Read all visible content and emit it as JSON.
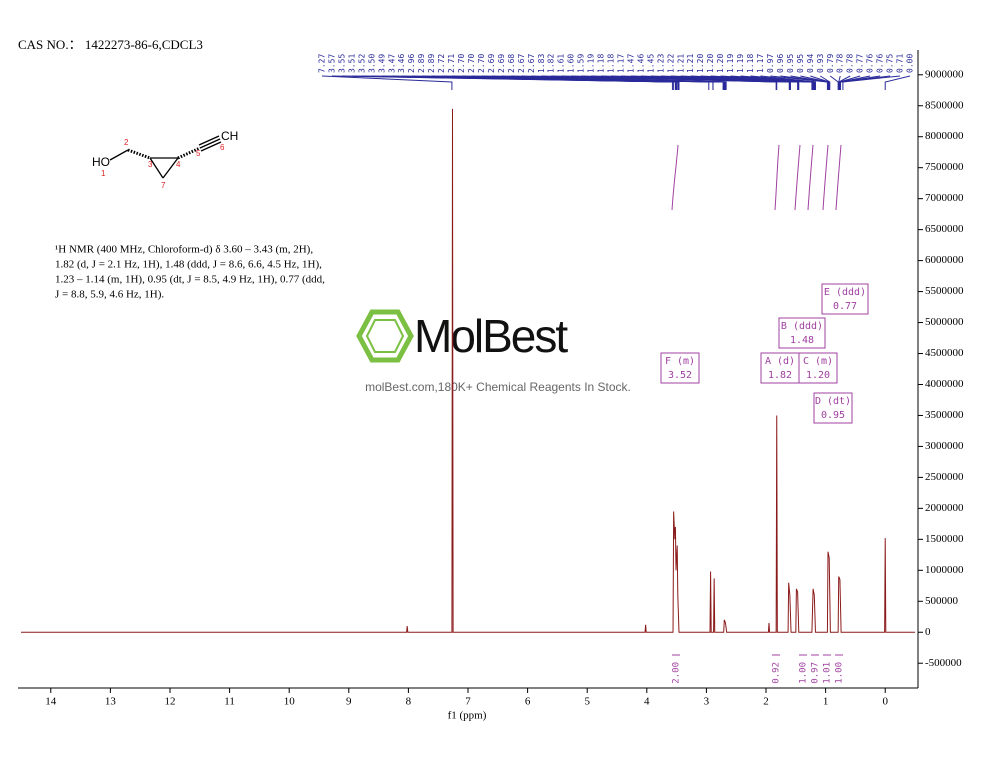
{
  "header": {
    "cas": "CAS NO.： 1422273-86-6,CDCL3"
  },
  "molecule": {
    "atoms": [
      "HO",
      "1",
      "2",
      "3",
      "4",
      "5",
      "6",
      "CH",
      "7"
    ]
  },
  "description": [
    "¹H NMR (400 MHz, Chloroform-d) δ 3.60 – 3.43 (m, 2H),",
    "1.82 (d, J = 2.1 Hz, 1H), 1.48 (ddd, J = 8.6, 6.6, 4.5 Hz, 1H),",
    "1.23 – 1.14 (m, 1H), 0.95 (dt, J = 8.5, 4.9 Hz, 1H), 0.77 (ddd,",
    "J = 8.8, 5.9, 4.6 Hz, 1H)."
  ],
  "watermark": {
    "brand": "MolBest",
    "tagline": "molBest.com,180K+ Chemical Reagents In Stock."
  },
  "chart_data": {
    "type": "line",
    "xlabel": "f1 (ppm)",
    "color": "#8b1a1a",
    "xlim": [
      14.55,
      -0.55
    ],
    "xticks": [
      14,
      13,
      12,
      11,
      10,
      9,
      8,
      7,
      6,
      5,
      4,
      3,
      2,
      1,
      0
    ],
    "ylim": [
      -900000,
      9400000
    ],
    "yticks": [
      -500000,
      0,
      500000,
      1000000,
      1500000,
      2000000,
      2500000,
      3000000,
      3500000,
      4000000,
      4500000,
      5000000,
      5500000,
      6000000,
      6500000,
      7000000,
      7500000,
      8000000,
      8500000,
      9000000
    ],
    "x": [
      14.5,
      8.03,
      8.02,
      8.01,
      7.27,
      7.26,
      7.25,
      4.03,
      4.02,
      4.01,
      3.56,
      3.55,
      3.53,
      3.52,
      3.51,
      3.49,
      3.48,
      3.46,
      2.94,
      2.93,
      2.92,
      2.88,
      2.87,
      2.86,
      2.71,
      2.7,
      2.68,
      2.66,
      1.96,
      1.95,
      1.94,
      1.83,
      1.82,
      1.81,
      1.63,
      1.62,
      1.6,
      1.58,
      1.5,
      1.49,
      1.47,
      1.45,
      1.23,
      1.21,
      1.19,
      1.17,
      0.97,
      0.96,
      0.94,
      0.92,
      0.79,
      0.78,
      0.76,
      0.74,
      0.01,
      0.0,
      -0.01,
      -0.5
    ],
    "series": [
      {
        "values": [
          0,
          0,
          100000,
          0,
          0,
          8450000,
          0,
          0,
          120000,
          0,
          0,
          1950000,
          1500000,
          1700000,
          1000000,
          1400000,
          600000,
          0,
          0,
          980000,
          0,
          0,
          870000,
          0,
          0,
          200000,
          150000,
          0,
          0,
          150000,
          0,
          0,
          3500000,
          0,
          0,
          800000,
          600000,
          0,
          0,
          700000,
          650000,
          0,
          0,
          700000,
          600000,
          0,
          0,
          1300000,
          1200000,
          0,
          0,
          900000,
          850000,
          0,
          0,
          1520000,
          0,
          0
        ]
      }
    ],
    "peak_labels": [
      "7.27",
      "3.57",
      "3.55",
      "3.51",
      "3.52",
      "3.50",
      "3.49",
      "3.47",
      "3.46",
      "2.96",
      "2.89",
      "2.89",
      "2.72",
      "2.71",
      "2.70",
      "2.70",
      "2.70",
      "2.69",
      "2.69",
      "2.68",
      "2.67",
      "2.67",
      "1.83",
      "1.82",
      "1.61",
      "1.60",
      "1.59",
      "1.19",
      "1.18",
      "1.18",
      "1.17",
      "1.47",
      "1.46",
      "1.45",
      "1.23",
      "1.22",
      "1.21",
      "1.21",
      "1.20",
      "1.20",
      "1.20",
      "1.19",
      "1.19",
      "1.18",
      "1.17",
      "0.97",
      "0.96",
      "0.95",
      "0.95",
      "0.94",
      "0.93",
      "0.79",
      "0.78",
      "0.78",
      "0.77",
      "0.76",
      "0.76",
      "0.75",
      "0.71",
      "0.00"
    ],
    "multiplets": [
      {
        "label": "F (m)",
        "shift": "3.52"
      },
      {
        "label": "A (d)",
        "shift": "1.82"
      },
      {
        "label": "B (ddd)",
        "shift": "1.48"
      },
      {
        "label": "C (m)",
        "shift": "1.20"
      },
      {
        "label": "D (dt)",
        "shift": "0.95"
      },
      {
        "label": "E (ddd)",
        "shift": "0.77"
      }
    ],
    "integrals": [
      "2.00",
      "0.92",
      "1.00",
      "0.97",
      "1.01",
      "1.00"
    ]
  }
}
